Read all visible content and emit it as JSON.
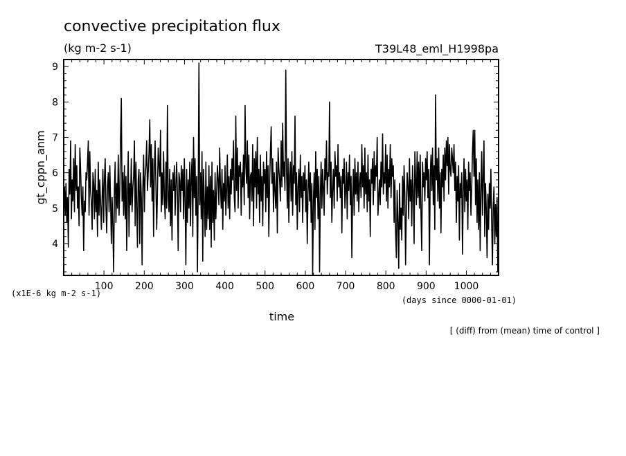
{
  "chart_data": {
    "type": "line",
    "title": "convective precipitation flux",
    "units": "(kg m-2 s-1)",
    "experiment": "T39L48_eml_H1998pa",
    "xlabel": "time",
    "x_units": "(days since 0000-01-01)",
    "ylabel": "gt_cppn_anm",
    "y_scale_note": "(x1E-6 kg m-2 s-1)",
    "footnote": "[ (diff) from (mean) time of control ]",
    "xlim": [
      0,
      1080
    ],
    "ylim": [
      3.1,
      9.2
    ],
    "x_ticks": [
      100,
      200,
      300,
      400,
      500,
      600,
      700,
      800,
      900,
      1000
    ],
    "y_ticks": [
      4,
      5,
      6,
      7,
      8,
      9
    ],
    "grid": false,
    "series": [
      {
        "values": [
          5.1,
          5.6,
          4.8,
          5.7,
          4.6,
          5.3,
          3.9,
          6.1,
          5.4,
          6.9,
          4.7,
          5.8,
          5.2,
          6.4,
          4.9,
          6.8,
          5.5,
          6.2,
          5.0,
          5.6,
          4.5,
          6.7,
          6.1,
          5.3,
          4.8,
          5.6,
          3.8,
          5.2,
          4.9,
          6.0,
          5.8,
          6.3,
          6.9,
          4.8,
          6.6,
          5.5,
          5.2,
          4.4,
          6.0,
          5.7,
          4.7,
          6.1,
          4.9,
          5.5,
          4.2,
          6.3,
          4.8,
          5.8,
          5.1,
          4.4,
          5.3,
          6.1,
          4.6,
          5.8,
          6.4,
          5.0,
          4.3,
          5.6,
          6.0,
          4.9,
          6.2,
          5.2,
          4.0,
          5.3,
          4.5,
          3.2,
          5.5,
          6.3,
          4.6,
          5.7,
          5.0,
          6.5,
          4.8,
          5.5,
          7.0,
          8.1,
          5.2,
          6.0,
          4.8,
          6.2,
          4.7,
          5.9,
          3.8,
          5.4,
          6.6,
          4.2,
          5.7,
          5.1,
          6.4,
          4.9,
          5.6,
          5.9,
          6.9,
          4.5,
          6.3,
          5.1,
          3.9,
          5.8,
          6.1,
          4.0,
          6.0,
          5.3,
          3.4,
          5.6,
          6.5,
          4.9,
          5.9,
          6.2,
          6.9,
          5.5,
          6.0,
          6.6,
          7.5,
          5.6,
          6.8,
          5.2,
          6.4,
          4.2,
          6.1,
          6.9,
          5.7,
          4.4,
          5.5,
          6.7,
          6.2,
          5.9,
          7.2,
          4.9,
          6.0,
          5.1,
          6.6,
          5.4,
          4.7,
          6.3,
          5.0,
          7.9,
          5.3,
          4.9,
          6.1,
          4.5,
          5.8,
          4.1,
          6.0,
          5.5,
          6.2,
          4.8,
          5.7,
          6.3,
          5.4,
          3.8,
          6.0,
          5.8,
          4.9,
          6.2,
          5.5,
          6.1,
          4.7,
          6.4,
          5.2,
          3.4,
          6.1,
          4.6,
          5.8,
          5.0,
          6.3,
          4.5,
          5.9,
          6.4,
          4.2,
          7.0,
          5.3,
          6.4,
          4.8,
          5.9,
          3.2,
          5.5,
          9.1,
          5.1,
          6.0,
          4.7,
          6.6,
          3.5,
          6.1,
          5.2,
          4.2,
          6.3,
          4.4,
          5.6,
          4.7,
          6.2,
          4.4,
          5.9,
          3.9,
          6.3,
          4.6,
          5.5,
          4.1,
          6.0,
          4.7,
          5.4,
          6.2,
          5.8,
          5.1,
          6.7,
          5.6,
          5.0,
          6.1,
          4.4,
          5.7,
          5.2,
          6.2,
          4.8,
          5.5,
          6.5,
          5.0,
          5.9,
          4.7,
          6.1,
          5.4,
          6.4,
          5.8,
          6.9,
          5.3,
          4.9,
          7.6,
          5.5,
          6.7,
          5.0,
          6.2,
          5.9,
          6.3,
          4.8,
          6.0,
          5.6,
          6.5,
          5.1,
          7.9,
          6.2,
          5.7,
          6.9,
          5.3,
          6.5,
          4.7,
          5.9,
          6.0,
          5.2,
          6.8,
          4.5,
          6.4,
          5.6,
          6.6,
          5.0,
          7.0,
          5.4,
          6.1,
          4.6,
          6.5,
          5.2,
          5.9,
          4.5,
          6.3,
          5.7,
          6.1,
          4.9,
          6.6,
          5.3,
          6.2,
          4.2,
          5.8,
          6.6,
          7.3,
          5.7,
          6.4,
          4.9,
          6.0,
          5.5,
          5.0,
          6.3,
          4.3,
          6.7,
          6.1,
          5.8,
          5.2,
          6.9,
          5.6,
          7.4,
          5.9,
          6.3,
          5.5,
          8.9,
          6.1,
          5.0,
          6.4,
          4.6,
          5.9,
          6.3,
          5.2,
          6.6,
          4.8,
          6.2,
          5.7,
          7.6,
          5.1,
          6.0,
          4.4,
          5.6,
          6.1,
          4.9,
          6.5,
          5.3,
          5.9,
          4.6,
          6.0,
          5.5,
          6.2,
          4.9,
          5.8,
          4.0,
          5.4,
          6.3,
          5.2,
          6.0,
          4.6,
          5.7,
          3.1,
          5.2,
          6.0,
          4.4,
          6.6,
          5.3,
          6.1,
          4.7,
          5.9,
          3.2,
          5.4,
          6.3,
          5.0,
          6.1,
          5.6,
          4.8,
          6.4,
          5.8,
          6.9,
          5.4,
          6.0,
          5.9,
          8.0,
          5.3,
          6.3,
          4.6,
          5.5,
          6.1,
          5.0,
          6.6,
          5.9,
          6.2,
          5.2,
          6.8,
          5.6,
          6.0,
          5.3,
          5.9,
          4.3,
          6.1,
          5.7,
          6.4,
          5.0,
          5.5,
          6.3,
          4.7,
          6.0,
          5.5,
          6.5,
          5.1,
          5.9,
          3.6,
          5.3,
          6.1,
          4.8,
          6.4,
          5.4,
          6.0,
          5.2,
          6.3,
          4.9,
          5.7,
          6.0,
          5.3,
          6.8,
          5.6,
          6.2,
          5.0,
          6.7,
          5.4,
          6.0,
          4.9,
          6.5,
          5.2,
          5.8,
          4.2,
          6.1,
          5.7,
          6.4,
          5.1,
          6.6,
          5.5,
          6.2,
          5.9,
          7.0,
          4.8,
          5.3,
          5.8,
          5.1,
          6.3,
          5.6,
          7.1,
          5.4,
          6.0,
          5.7,
          6.8,
          5.2,
          6.5,
          5.0,
          6.1,
          5.6,
          6.8,
          5.3,
          6.4,
          5.9,
          6.2,
          4.6,
          5.8,
          4.3,
          3.6,
          5.5,
          4.6,
          3.3,
          5.7,
          4.4,
          5.0,
          4.1,
          5.9,
          4.8,
          6.2,
          5.4,
          3.4,
          5.1,
          6.0,
          5.6,
          4.7,
          6.4,
          5.2,
          5.8,
          4.5,
          6.2,
          5.5,
          4.0,
          6.6,
          5.8,
          5.1,
          6.6,
          5.3,
          6.3,
          5.0,
          6.5,
          4.9,
          3.8,
          6.3,
          5.6,
          6.0,
          5.2,
          6.4,
          5.8,
          6.6,
          5.3,
          6.1,
          3.4,
          5.9,
          6.5,
          5.5,
          6.7,
          5.1,
          6.2,
          4.4,
          8.2,
          5.8,
          6.4,
          5.2,
          6.7,
          5.0,
          6.0,
          4.3,
          6.1,
          5.6,
          6.5,
          5.2,
          6.7,
          5.8,
          6.9,
          6.2,
          7.0,
          5.4,
          6.8,
          6.1,
          5.9,
          6.7,
          6.4,
          6.0,
          6.8,
          5.5,
          6.3,
          4.6,
          5.9,
          5.2,
          6.2,
          4.1,
          5.7,
          5.3,
          6.0,
          3.7,
          5.5,
          6.4,
          4.9,
          6.1,
          5.2,
          5.8,
          4.4,
          6.3,
          5.5,
          6.0,
          4.8,
          5.6,
          6.6,
          7.2,
          5.9,
          7.2,
          5.1,
          6.4,
          4.6,
          5.8,
          4.4,
          6.0,
          3.8,
          5.5,
          6.6,
          4.8,
          5.9,
          6.9,
          4.2,
          5.7,
          5.0,
          3.6,
          5.4,
          4.4,
          5.7,
          5.0,
          6.1,
          4.6,
          3.4,
          5.0,
          5.6,
          4.0,
          5.1,
          4.2,
          5.3,
          3.2,
          5.0
        ]
      }
    ]
  }
}
